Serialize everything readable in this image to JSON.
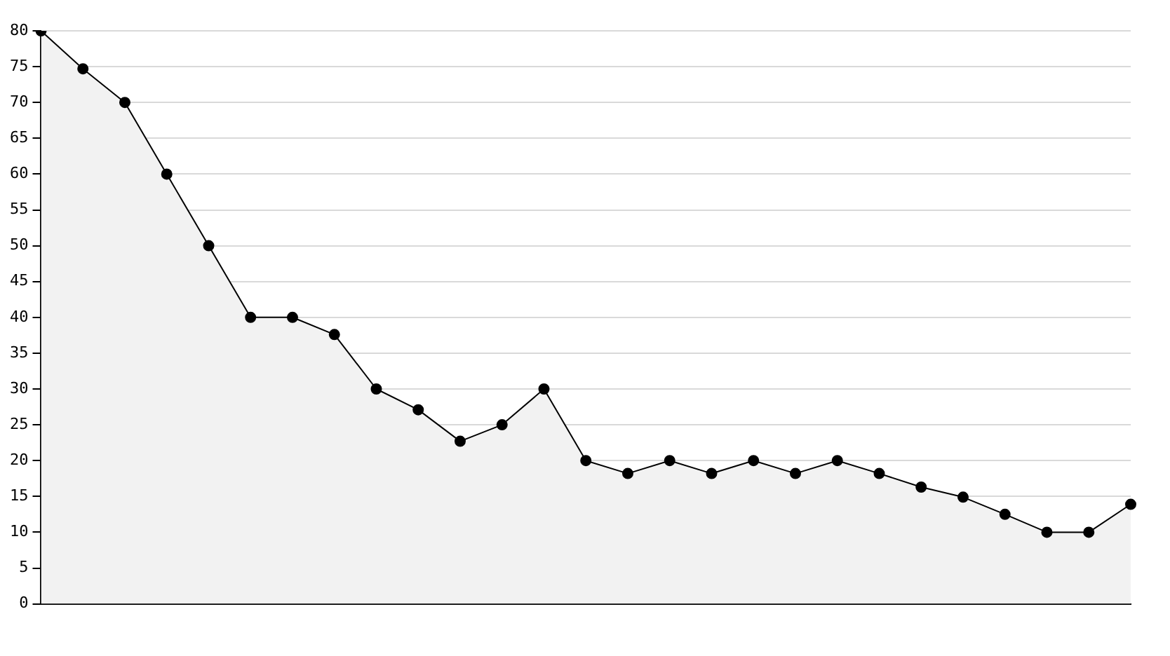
{
  "chart_data": {
    "type": "area",
    "categories": [
      null,
      null,
      null,
      null,
      null,
      null,
      null,
      null,
      null,
      null,
      null,
      null,
      null,
      null,
      null,
      null,
      null,
      null,
      null,
      null,
      null,
      null,
      null,
      null,
      null,
      null,
      null
    ],
    "series": [
      {
        "color": "#000000",
        "values": [
          80,
          74.7,
          70,
          60,
          50,
          40,
          40,
          37.6,
          30,
          27.1,
          22.7,
          25,
          30,
          20,
          18.2,
          20,
          18.2,
          20,
          18.2,
          20,
          18.2,
          16.3,
          14.9,
          12.5,
          10,
          10,
          13.9
        ]
      }
    ],
    "ylim": [
      0,
      80
    ],
    "yticks": [
      0,
      5,
      10,
      15,
      20,
      25,
      30,
      35,
      40,
      45,
      50,
      55,
      60,
      65,
      70,
      75,
      80
    ],
    "grid": "y",
    "legend": false,
    "marker": "circle",
    "line_style": "solid"
  }
}
